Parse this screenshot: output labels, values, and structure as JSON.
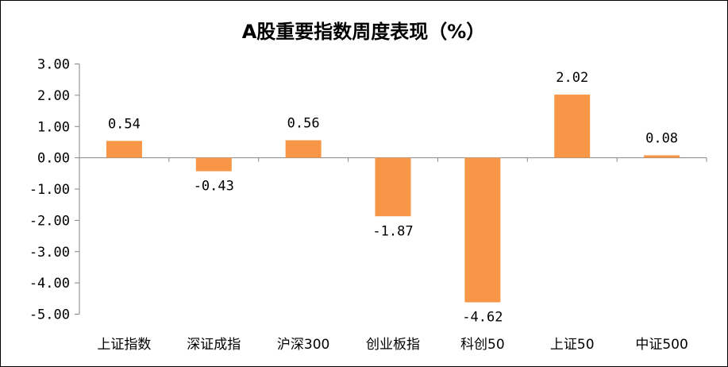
{
  "chart_data": {
    "type": "bar",
    "title": "A股重要指数周度表现（%）",
    "categories": [
      "上证指数",
      "深证成指",
      "沪深300",
      "创业板指",
      "科创50",
      "上证50",
      "中证500"
    ],
    "values": [
      0.54,
      -0.43,
      0.56,
      -1.87,
      -4.62,
      2.02,
      0.08
    ],
    "data_labels": [
      "0.54",
      "-0.43",
      "0.56",
      "-1.87",
      "-4.62",
      "2.02",
      "0.08"
    ],
    "ylim": [
      -5,
      3
    ],
    "yticks": [
      "3.00",
      "2.00",
      "1.00",
      "0.00",
      "-1.00",
      "-2.00",
      "-3.00",
      "-4.00",
      "-5.00"
    ],
    "xlabel": "",
    "ylabel": "",
    "grid": false,
    "legend": "none",
    "bar_color": "#F79646"
  }
}
